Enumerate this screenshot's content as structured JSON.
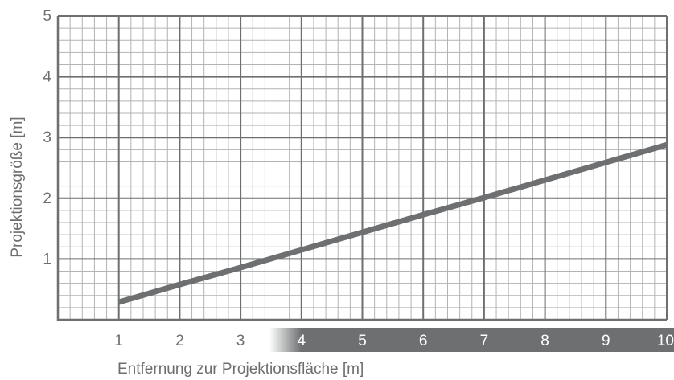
{
  "chart_data": {
    "type": "line",
    "title": "",
    "xlabel": "Entfernung zur Projektionsfläche [m]",
    "ylabel": "Projektionsgröße [m]",
    "xlim": [
      0,
      10
    ],
    "ylim": [
      0,
      5
    ],
    "x_ticks": [
      "1",
      "2",
      "3",
      "4",
      "5",
      "6",
      "7",
      "8",
      "9",
      "10"
    ],
    "y_ticks": [
      "1",
      "2",
      "3",
      "4",
      "5"
    ],
    "grid": true,
    "minor_grid_per_major_x": 5,
    "minor_grid_per_major_y": 5,
    "highlight_x_range": [
      4,
      10
    ],
    "colors": {
      "line": "#6d6f71",
      "grid_major": "#6d6f71",
      "grid_minor": "#b3b3b3",
      "text": "#6e6e6e",
      "band": "#6d6f71"
    },
    "series": [
      {
        "x": [
          1,
          2,
          3,
          4,
          5,
          6,
          7,
          8,
          9,
          10
        ],
        "y": [
          0.29,
          0.58,
          0.86,
          1.15,
          1.44,
          1.73,
          2.01,
          2.3,
          2.59,
          2.88
        ]
      }
    ]
  }
}
